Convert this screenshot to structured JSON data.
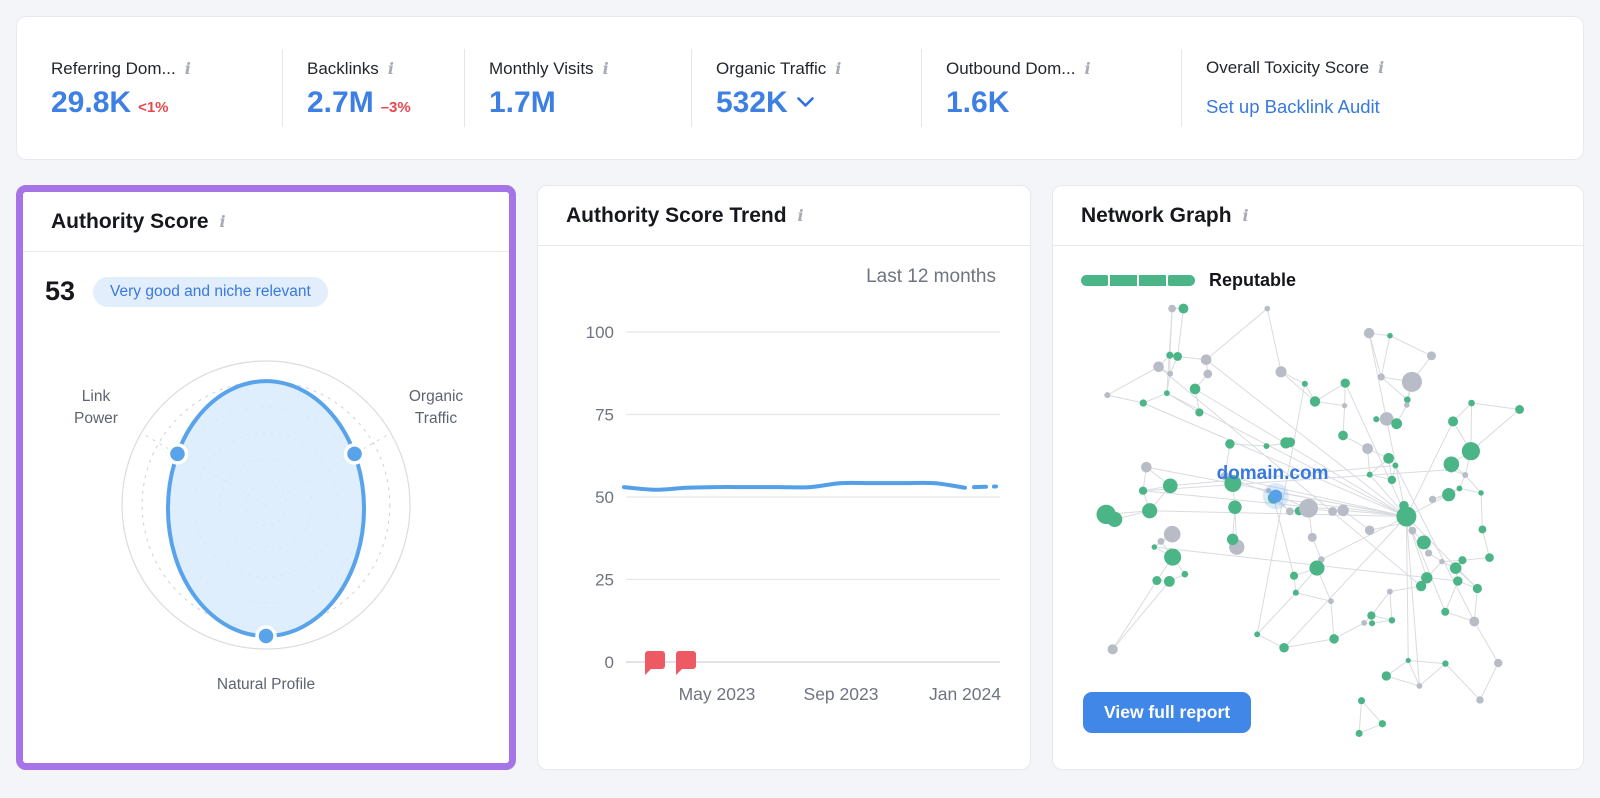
{
  "topbar": {
    "metrics": [
      {
        "label": "Referring Dom...",
        "value": "29.8K",
        "delta": "<1%"
      },
      {
        "label": "Backlinks",
        "value": "2.7M",
        "delta": "–3%"
      },
      {
        "label": "Monthly Visits",
        "value": "1.7M"
      },
      {
        "label": "Organic Traffic",
        "value": "532K",
        "has_dropdown": true
      },
      {
        "label": "Outbound Dom...",
        "value": "1.6K"
      },
      {
        "label": "Overall Toxicity Score",
        "link": "Set up Backlink Audit"
      }
    ],
    "info_icon_glyph": "i"
  },
  "cards": {
    "authority_score": {
      "title": "Authority Score",
      "score": "53",
      "badge": "Very good and niche relevant"
    },
    "trend": {
      "title": "Authority Score Trend",
      "range_label": "Last 12 months"
    },
    "network": {
      "title": "Network Graph",
      "legend_label": "Reputable",
      "center_label": "domain.com",
      "button_label": "View full report"
    }
  },
  "colors": {
    "accent_blue": "#3d7fe3",
    "chart_blue": "#54a0e8",
    "delta_red": "#e8474f",
    "flag_red": "#ee5a64",
    "node_green": "#4cb588",
    "node_gray": "#b8bcc6",
    "purple_highlight": "#a674e6",
    "badge_bg": "#e2eefc"
  },
  "chart_data": [
    {
      "id": "authority_radar",
      "type": "radar",
      "axes": [
        "Link Power",
        "Organic Traffic",
        "Natural Profile"
      ],
      "values": [
        0.71,
        0.71,
        0.91
      ],
      "max": 1,
      "rings": 5,
      "stroke": "#58a3ea",
      "fill": "#d9ebfc"
    },
    {
      "id": "authority_score_trend",
      "type": "line",
      "title": "Authority Score Trend",
      "range": "Last 12 months",
      "x": [
        "Feb 2023",
        "Mar 2023",
        "Apr 2023",
        "May 2023",
        "Jun 2023",
        "Jul 2023",
        "Aug 2023",
        "Sep 2023",
        "Oct 2023",
        "Nov 2023",
        "Dec 2023",
        "Jan 2024",
        "Feb 2024"
      ],
      "values": [
        53,
        52.2,
        52.8,
        53,
        53,
        53,
        53,
        54.2,
        54.2,
        54.2,
        54.2,
        52.8,
        53.2
      ],
      "ylim": [
        0,
        100
      ],
      "yticks": [
        100,
        75,
        50,
        25,
        0
      ],
      "xticks": [
        "May 2023",
        "Sep 2023",
        "Jan 2024"
      ],
      "grid": true,
      "last_segment_style": "dashed",
      "line_color": "#54a0e8",
      "annotations": [
        {
          "type": "flag",
          "x": "Mar 2023",
          "y": 0,
          "color": "#ee5a64"
        },
        {
          "type": "flag",
          "x": "Apr 2023",
          "y": 0,
          "color": "#ee5a64"
        }
      ]
    },
    {
      "id": "network_graph",
      "type": "network",
      "seed": 11,
      "center_label": "domain.com",
      "legend": [
        {
          "label": "Reputable",
          "color": "#4cb588",
          "segments": 4
        }
      ],
      "node_colors": {
        "reputable": "#4cb588",
        "unknown": "#b8bcc6",
        "root": "#57a0ea"
      },
      "clusters": [
        {
          "cx": 0.23,
          "cy": 0.16,
          "spread": 0.11,
          "count": 14,
          "green": 0.3
        },
        {
          "cx": 0.7,
          "cy": 0.2,
          "spread": 0.12,
          "count": 16,
          "green": 0.6
        },
        {
          "cx": 0.68,
          "cy": 0.47,
          "spread": 0.14,
          "count": 30,
          "green": 0.65
        },
        {
          "cx": 0.38,
          "cy": 0.52,
          "spread": 0.15,
          "count": 26,
          "green": 0.55
        },
        {
          "cx": 0.63,
          "cy": 0.78,
          "spread": 0.12,
          "count": 22,
          "green": 0.7
        },
        {
          "cx": 0.12,
          "cy": 0.48,
          "spread": 0.08,
          "count": 8,
          "green": 0.5
        }
      ],
      "hub": {
        "x": 0.685,
        "y": 0.49
      },
      "root_node": {
        "x": 0.41,
        "y": 0.445
      }
    }
  ]
}
